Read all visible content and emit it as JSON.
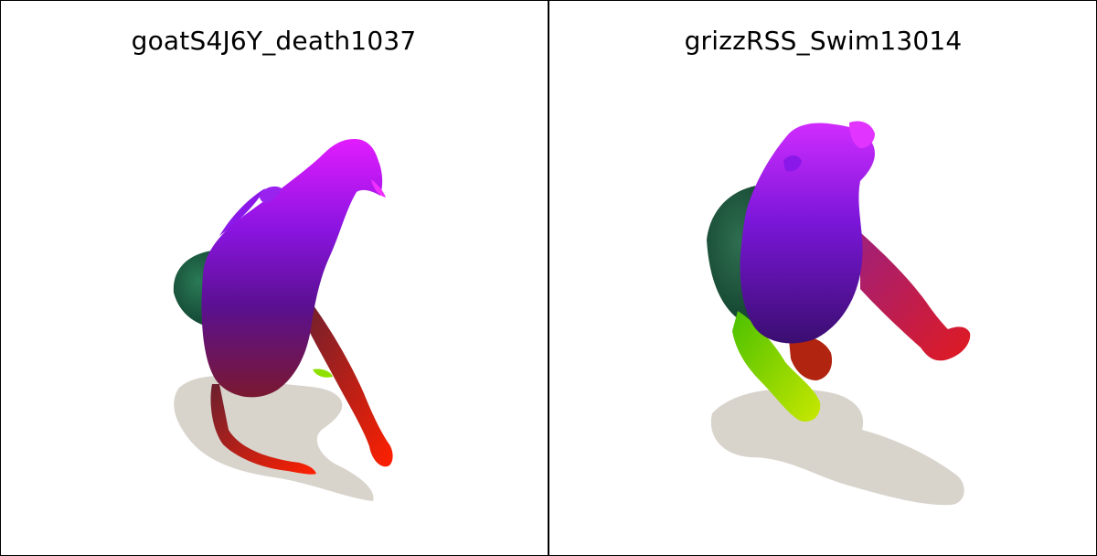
{
  "panels": [
    {
      "title": "goatS4J6Y_death1037"
    },
    {
      "title": "grizzRSS_Swim13014"
    }
  ],
  "colors": {
    "shadow": "#d8d4cc",
    "magenta": "#d91cff",
    "violet": "#6a10c8",
    "green": "#1f5c40",
    "lime": "#8ee000",
    "red": "#ff1a00"
  }
}
